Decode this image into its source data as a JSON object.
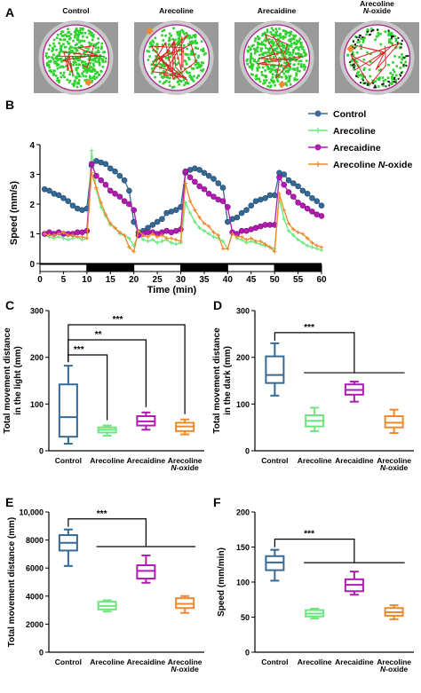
{
  "panel_letters": {
    "a": "A",
    "b": "B",
    "c": "C",
    "d": "D",
    "e": "E",
    "f": "F"
  },
  "panel_a": {
    "labels": [
      "Control",
      "Arecoline",
      "Arecaidine",
      "Arecoline\nN-oxide"
    ],
    "trace_colors": {
      "arena_bg": "#9a9a9a",
      "dish": "#c8c8c8",
      "ring": "#b0228e",
      "green": "#2fd12f",
      "red": "#d8262a",
      "orange": "#f08a2a"
    }
  },
  "colors": {
    "Control": "#356a97",
    "Arecoline": "#6ae87e",
    "Arecaidine": "#b31ab3",
    "Arecoline N-oxide": "#ef8a2a"
  },
  "chart_data": [
    {
      "panel": "B",
      "type": "line",
      "ylabel": "Speed (mm/s)",
      "xlabel": "Time (min)",
      "xlim": [
        0,
        60
      ],
      "ylim": [
        0,
        4
      ],
      "xticks": [
        0,
        5,
        10,
        15,
        20,
        25,
        30,
        35,
        40,
        45,
        50,
        55,
        60
      ],
      "yticks": [
        0,
        1,
        2,
        3,
        4
      ],
      "light_dark_bar": [
        {
          "from": 0,
          "to": 10,
          "state": "light"
        },
        {
          "from": 10,
          "to": 20,
          "state": "dark"
        },
        {
          "from": 20,
          "to": 30,
          "state": "light"
        },
        {
          "from": 30,
          "to": 40,
          "state": "dark"
        },
        {
          "from": 40,
          "to": 50,
          "state": "light"
        },
        {
          "from": 50,
          "to": 60,
          "state": "dark"
        }
      ],
      "legend_position": "top-right",
      "series": [
        {
          "name": "Control",
          "x": [
            1,
            2,
            3,
            4,
            5,
            6,
            7,
            8,
            9,
            10,
            11,
            12,
            13,
            14,
            15,
            16,
            17,
            18,
            19,
            20,
            21,
            22,
            23,
            24,
            25,
            26,
            27,
            28,
            29,
            30,
            31,
            32,
            33,
            34,
            35,
            36,
            37,
            38,
            39,
            40,
            41,
            42,
            43,
            44,
            45,
            46,
            47,
            48,
            49,
            50,
            51,
            52,
            53,
            54,
            55,
            56,
            57,
            58,
            59,
            60
          ],
          "values": [
            2.5,
            2.45,
            2.35,
            2.3,
            2.2,
            2.1,
            1.95,
            1.85,
            1.8,
            1.85,
            3.3,
            3.45,
            3.4,
            3.35,
            3.2,
            3.1,
            2.95,
            2.8,
            2.45,
            1.4,
            1.05,
            1.1,
            1.2,
            1.3,
            1.4,
            1.5,
            1.7,
            1.75,
            1.8,
            1.9,
            3.05,
            3.15,
            3.2,
            3.15,
            3.05,
            2.95,
            2.85,
            2.7,
            2.55,
            1.4,
            1.5,
            1.55,
            1.7,
            1.8,
            1.95,
            2.1,
            2.15,
            2.2,
            2.3,
            2.3,
            3.05,
            3.0,
            2.8,
            2.7,
            2.6,
            2.45,
            2.35,
            2.2,
            2.1,
            1.95
          ]
        },
        {
          "name": "Arecoline",
          "x": [
            1,
            2,
            3,
            4,
            5,
            6,
            7,
            8,
            9,
            10,
            11,
            12,
            13,
            14,
            15,
            16,
            17,
            18,
            19,
            20,
            21,
            22,
            23,
            24,
            25,
            26,
            27,
            28,
            29,
            30,
            31,
            32,
            33,
            34,
            35,
            36,
            37,
            38,
            39,
            40,
            41,
            42,
            43,
            44,
            45,
            46,
            47,
            48,
            49,
            50,
            51,
            52,
            53,
            54,
            55,
            56,
            57,
            58,
            59,
            60
          ],
          "values": [
            0.95,
            0.9,
            0.85,
            0.9,
            0.85,
            0.8,
            0.85,
            0.9,
            0.8,
            0.85,
            3.8,
            2.5,
            1.9,
            1.6,
            1.3,
            1.2,
            1.0,
            0.95,
            0.85,
            0.6,
            1.0,
            0.8,
            0.75,
            0.8,
            0.7,
            0.75,
            0.8,
            0.7,
            0.65,
            0.7,
            2.05,
            1.7,
            1.4,
            1.2,
            1.1,
            1.0,
            0.9,
            0.85,
            0.75,
            0.5,
            1.05,
            0.85,
            0.8,
            0.7,
            0.75,
            0.7,
            0.65,
            0.6,
            0.55,
            0.5,
            2.2,
            1.5,
            1.1,
            0.95,
            0.8,
            0.7,
            0.6,
            0.55,
            0.5,
            0.45
          ]
        },
        {
          "name": "Arecaidine",
          "x": [
            1,
            2,
            3,
            4,
            5,
            6,
            7,
            8,
            9,
            10,
            11,
            12,
            13,
            14,
            15,
            16,
            17,
            18,
            19,
            20,
            21,
            22,
            23,
            24,
            25,
            26,
            27,
            28,
            29,
            30,
            31,
            32,
            33,
            34,
            35,
            36,
            37,
            38,
            39,
            40,
            41,
            42,
            43,
            44,
            45,
            46,
            47,
            48,
            49,
            50,
            51,
            52,
            53,
            54,
            55,
            56,
            57,
            58,
            59,
            60
          ],
          "values": [
            1.0,
            1.05,
            1.0,
            1.05,
            1.0,
            1.0,
            1.0,
            1.05,
            1.05,
            1.1,
            3.35,
            2.95,
            2.8,
            2.65,
            2.45,
            2.35,
            2.25,
            2.1,
            2.0,
            1.8,
            0.95,
            1.0,
            1.05,
            1.05,
            1.0,
            1.05,
            1.1,
            1.05,
            1.1,
            1.15,
            3.1,
            2.9,
            2.75,
            2.6,
            2.5,
            2.35,
            2.25,
            2.15,
            2.1,
            1.9,
            1.05,
            1.0,
            1.1,
            1.1,
            1.15,
            1.2,
            1.25,
            1.3,
            1.3,
            1.3,
            2.9,
            2.65,
            2.4,
            2.25,
            2.05,
            1.95,
            1.85,
            1.75,
            1.65,
            1.6
          ]
        },
        {
          "name": "Arecoline N-oxide",
          "x": [
            1,
            2,
            3,
            4,
            5,
            6,
            7,
            8,
            9,
            10,
            11,
            12,
            13,
            14,
            15,
            16,
            17,
            18,
            19,
            20,
            21,
            22,
            23,
            24,
            25,
            26,
            27,
            28,
            29,
            30,
            31,
            32,
            33,
            34,
            35,
            36,
            37,
            38,
            39,
            40,
            41,
            42,
            43,
            44,
            45,
            46,
            47,
            48,
            49,
            50,
            51,
            52,
            53,
            54,
            55,
            56,
            57,
            58,
            59,
            60
          ],
          "values": [
            1.0,
            0.95,
            0.95,
            1.0,
            1.05,
            0.95,
            0.95,
            0.9,
            0.9,
            0.85,
            3.05,
            2.55,
            2.05,
            1.65,
            1.35,
            1.2,
            1.05,
            0.95,
            0.55,
            0.4,
            1.1,
            0.95,
            0.9,
            1.0,
            0.9,
            0.95,
            0.85,
            0.85,
            0.8,
            0.75,
            2.7,
            2.1,
            1.8,
            1.55,
            1.35,
            1.25,
            1.05,
            0.95,
            0.5,
            0.5,
            1.0,
            0.9,
            0.9,
            0.8,
            0.85,
            0.75,
            0.75,
            0.65,
            0.55,
            0.4,
            2.35,
            1.8,
            1.35,
            1.15,
            1.05,
            1.0,
            0.85,
            0.7,
            0.6,
            0.55
          ]
        }
      ]
    },
    {
      "panel": "C",
      "type": "box",
      "ylabel": "Total movement distance\nin the light (mm)",
      "ylim": [
        0,
        300
      ],
      "yticks": [
        0,
        100,
        200,
        300
      ],
      "categories": [
        "Control",
        "Arecoline",
        "Arecaidine",
        "Arecoline\nN-oxide"
      ],
      "boxes": [
        {
          "min": 15,
          "q1": 30,
          "median": 72,
          "q3": 142,
          "max": 182
        },
        {
          "min": 32,
          "q1": 39,
          "median": 45,
          "q3": 50,
          "max": 54
        },
        {
          "min": 45,
          "q1": 54,
          "median": 63,
          "q3": 74,
          "max": 82
        },
        {
          "min": 35,
          "q1": 42,
          "median": 52,
          "q3": 60,
          "max": 67
        }
      ],
      "significance": [
        {
          "to": "Arecoline",
          "label": "***"
        },
        {
          "to": "Arecaidine",
          "label": "**"
        },
        {
          "to": "Arecoline N-oxide",
          "label": "***"
        }
      ]
    },
    {
      "panel": "D",
      "type": "box",
      "ylabel": "Total movement distance\nin the dark (mm)",
      "ylim": [
        0,
        300
      ],
      "yticks": [
        0,
        100,
        200,
        300
      ],
      "categories": [
        "Control",
        "Arecoline",
        "Arecaidine",
        "Arecoline\nN-oxide"
      ],
      "boxes": [
        {
          "min": 118,
          "q1": 145,
          "median": 162,
          "q3": 202,
          "max": 230
        },
        {
          "min": 42,
          "q1": 52,
          "median": 64,
          "q3": 76,
          "max": 92
        },
        {
          "min": 105,
          "q1": 120,
          "median": 130,
          "q3": 142,
          "max": 148
        },
        {
          "min": 38,
          "q1": 50,
          "median": 60,
          "q3": 74,
          "max": 88
        }
      ],
      "significance": [
        {
          "label": "***"
        }
      ]
    },
    {
      "panel": "E",
      "type": "box",
      "ylabel": "Total movement distance (mm)",
      "ylim": [
        0,
        10000
      ],
      "yticks": [
        0,
        2000,
        4000,
        6000,
        8000,
        10000
      ],
      "ytick_labels": [
        "0",
        "2000",
        "4000",
        "6000",
        "8000",
        "10,000"
      ],
      "categories": [
        "Control",
        "Arecoline",
        "Arecaidine",
        "Arecoline\nN-oxide"
      ],
      "boxes": [
        {
          "min": 6150,
          "q1": 7250,
          "median": 7800,
          "q3": 8350,
          "max": 8750
        },
        {
          "min": 2900,
          "q1": 3050,
          "median": 3300,
          "q3": 3600,
          "max": 3700
        },
        {
          "min": 4950,
          "q1": 5250,
          "median": 5800,
          "q3": 6200,
          "max": 6900
        },
        {
          "min": 2800,
          "q1": 3150,
          "median": 3450,
          "q3": 3850,
          "max": 4000
        }
      ],
      "significance": [
        {
          "label": "***"
        }
      ]
    },
    {
      "panel": "F",
      "type": "box",
      "ylabel": "Speed (mm/min)",
      "ylim": [
        0,
        200
      ],
      "yticks": [
        0,
        50,
        100,
        150,
        200
      ],
      "categories": [
        "Control",
        "Arecoline",
        "Arecaidine",
        "Arecoline\nN-oxide"
      ],
      "boxes": [
        {
          "min": 102,
          "q1": 117,
          "median": 128,
          "q3": 137,
          "max": 146
        },
        {
          "min": 48,
          "q1": 51,
          "median": 55,
          "q3": 60,
          "max": 62
        },
        {
          "min": 82,
          "q1": 87,
          "median": 96,
          "q3": 104,
          "max": 115
        },
        {
          "min": 47,
          "q1": 52,
          "median": 57,
          "q3": 63,
          "max": 67
        }
      ],
      "significance": [
        {
          "label": "***"
        }
      ]
    }
  ]
}
